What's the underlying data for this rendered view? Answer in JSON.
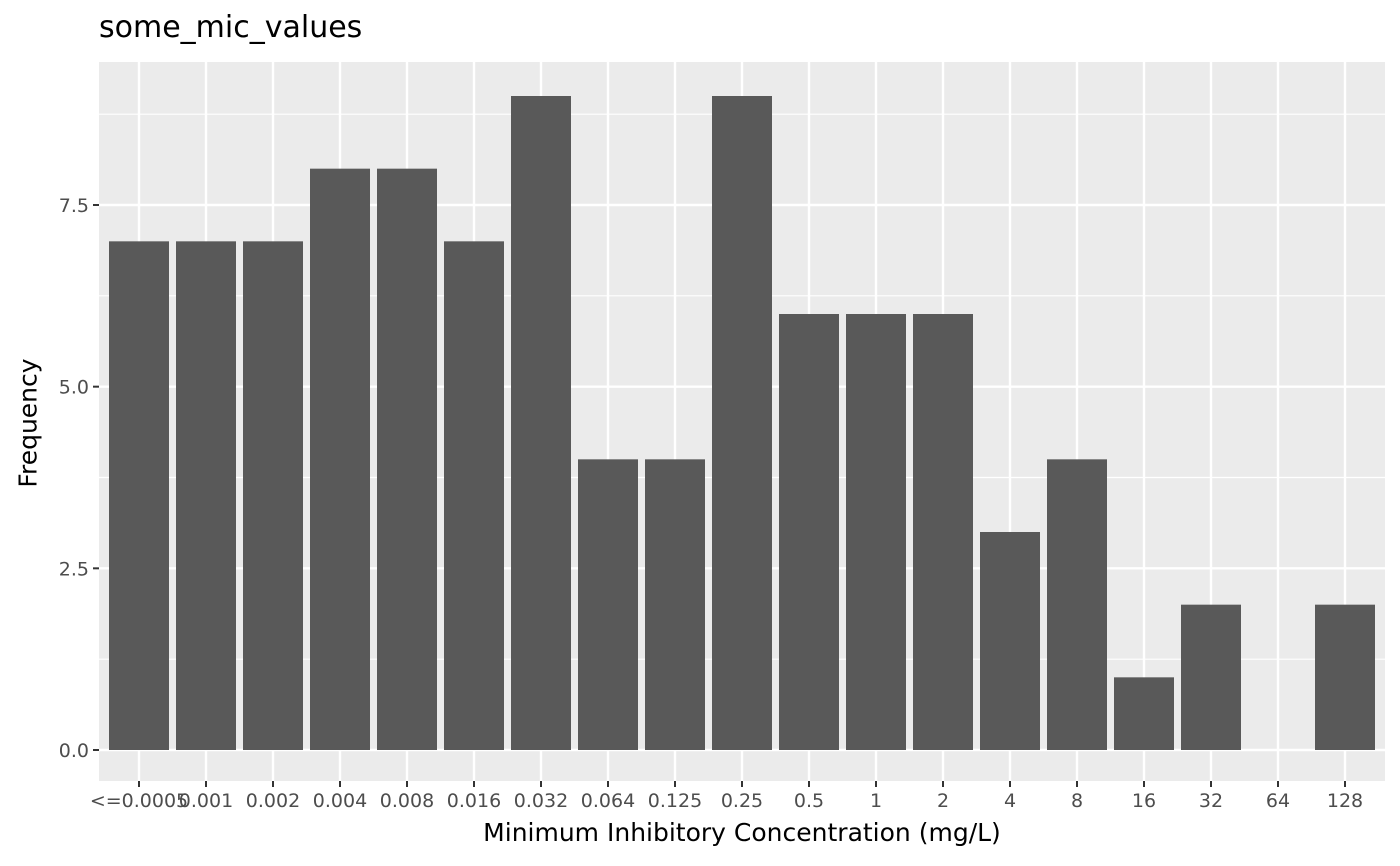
{
  "chart_data": {
    "type": "bar",
    "title": "some_mic_values",
    "xlabel": "Minimum Inhibitory Concentration (mg/L)",
    "ylabel": "Frequency",
    "categories": [
      "<=0.0005",
      "0.001",
      "0.002",
      "0.004",
      "0.008",
      "0.016",
      "0.032",
      "0.064",
      "0.125",
      "0.25",
      "0.5",
      "1",
      "2",
      "4",
      "8",
      "16",
      "32",
      "64",
      "128"
    ],
    "values": [
      7,
      7,
      7,
      8,
      8,
      7,
      9,
      4,
      4,
      9,
      6,
      6,
      6,
      3,
      4,
      1,
      2,
      0,
      2
    ],
    "yticks": [
      "0.0",
      "2.5",
      "5.0",
      "7.5"
    ],
    "ytick_values": [
      0,
      2.5,
      5,
      7.5
    ],
    "ylim": [
      -0.43,
      9.45
    ],
    "grid": true,
    "colors": {
      "bar": "#595959",
      "panel": "#ebebeb",
      "grid": "#ffffff"
    }
  }
}
